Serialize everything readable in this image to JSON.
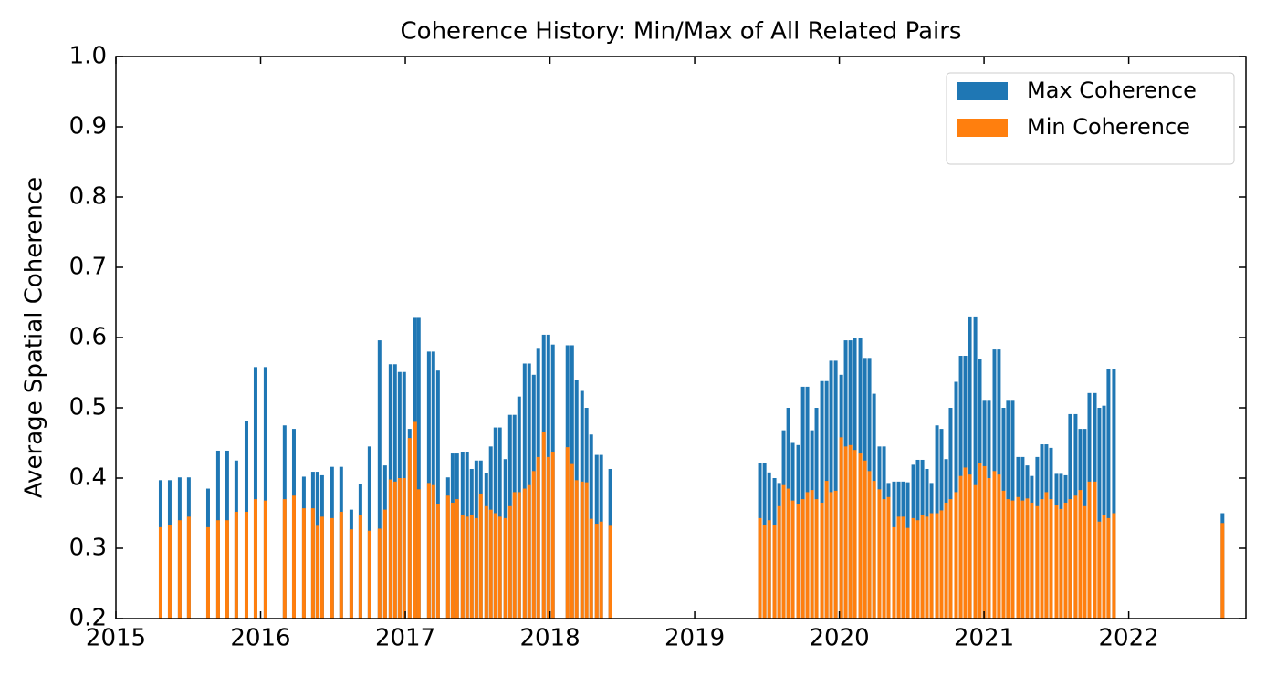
{
  "chart_data": {
    "type": "bar",
    "title": "Coherence History: Min/Max of All Related Pairs",
    "y_label": "Average Spatial Coherence",
    "xlim": [
      2015,
      2022.81
    ],
    "xticks": [
      2015,
      2016,
      2017,
      2018,
      2019,
      2020,
      2021,
      2022
    ],
    "ylim": [
      0.2,
      1.0
    ],
    "yticks": [
      0.2,
      0.3,
      0.4,
      0.5,
      0.6,
      0.7,
      0.8,
      0.9,
      {
        "value": 1.0,
        "label": "1.0"
      }
    ],
    "legend": "upper right",
    "x": [
      2015.309,
      2015.372,
      2015.441,
      2015.504,
      2015.637,
      2015.706,
      2015.769,
      2015.832,
      2015.902,
      2015.965,
      2016.034,
      2016.166,
      2016.23,
      2016.299,
      2016.362,
      2016.393,
      2016.425,
      2016.494,
      2016.557,
      2016.627,
      2016.69,
      2016.753,
      2016.822,
      2016.86,
      2016.898,
      2016.929,
      2016.961,
      2016.992,
      2017.03,
      2017.068,
      2017.093,
      2017.163,
      2017.194,
      2017.226,
      2017.295,
      2017.327,
      2017.358,
      2017.396,
      2017.427,
      2017.459,
      2017.491,
      2017.522,
      2017.56,
      2017.591,
      2017.623,
      2017.654,
      2017.692,
      2017.724,
      2017.755,
      2017.787,
      2017.825,
      2017.856,
      2017.888,
      2017.919,
      2017.957,
      2017.989,
      2018.02,
      2018.121,
      2018.153,
      2018.184,
      2018.222,
      2018.253,
      2018.285,
      2018.323,
      2018.354,
      2018.417,
      2019.451,
      2019.483,
      2019.515,
      2019.552,
      2019.584,
      2019.615,
      2019.647,
      2019.678,
      2019.716,
      2019.748,
      2019.779,
      2019.811,
      2019.842,
      2019.88,
      2019.912,
      2019.943,
      2019.975,
      2020.013,
      2020.044,
      2020.076,
      2020.107,
      2020.145,
      2020.177,
      2020.208,
      2020.24,
      2020.277,
      2020.309,
      2020.34,
      2020.378,
      2020.41,
      2020.441,
      2020.473,
      2020.511,
      2020.542,
      2020.574,
      2020.605,
      2020.637,
      2020.675,
      2020.706,
      2020.738,
      2020.769,
      2020.807,
      2020.839,
      2020.87,
      2020.902,
      2020.94,
      2020.971,
      2021.003,
      2021.034,
      2021.072,
      2021.103,
      2021.135,
      2021.166,
      2021.198,
      2021.236,
      2021.267,
      2021.299,
      2021.33,
      2021.368,
      2021.4,
      2021.431,
      2021.463,
      2021.501,
      2021.532,
      2021.564,
      2021.595,
      2021.633,
      2021.665,
      2021.696,
      2021.728,
      2021.766,
      2021.797,
      2021.829,
      2021.86,
      2021.898,
      2022.648
    ],
    "series": [
      {
        "name": "Max Coherence",
        "color": "#1f77b4",
        "values": [
          0.397,
          0.397,
          0.401,
          0.401,
          0.385,
          0.439,
          0.439,
          0.425,
          0.481,
          0.558,
          0.558,
          0.475,
          0.47,
          0.402,
          0.409,
          0.409,
          0.404,
          0.416,
          0.416,
          0.355,
          0.391,
          0.445,
          0.596,
          0.418,
          0.562,
          0.562,
          0.551,
          0.551,
          0.47,
          0.628,
          0.628,
          0.58,
          0.58,
          0.553,
          0.401,
          0.435,
          0.435,
          0.437,
          0.437,
          0.413,
          0.425,
          0.425,
          0.407,
          0.445,
          0.472,
          0.472,
          0.427,
          0.49,
          0.49,
          0.516,
          0.563,
          0.563,
          0.547,
          0.584,
          0.604,
          0.604,
          0.59,
          0.589,
          0.589,
          0.54,
          0.524,
          0.5,
          0.462,
          0.433,
          0.433,
          0.413,
          0.422,
          0.422,
          0.408,
          0.4,
          0.393,
          0.468,
          0.5,
          0.45,
          0.447,
          0.53,
          0.53,
          0.468,
          0.5,
          0.538,
          0.538,
          0.567,
          0.567,
          0.547,
          0.596,
          0.596,
          0.6,
          0.6,
          0.571,
          0.571,
          0.52,
          0.445,
          0.445,
          0.393,
          0.395,
          0.395,
          0.395,
          0.394,
          0.419,
          0.426,
          0.426,
          0.413,
          0.393,
          0.475,
          0.47,
          0.427,
          0.5,
          0.537,
          0.574,
          0.574,
          0.63,
          0.63,
          0.57,
          0.51,
          0.51,
          0.583,
          0.583,
          0.5,
          0.51,
          0.51,
          0.43,
          0.43,
          0.418,
          0.403,
          0.43,
          0.448,
          0.448,
          0.443,
          0.406,
          0.406,
          0.404,
          0.491,
          0.491,
          0.47,
          0.47,
          0.521,
          0.521,
          0.5,
          0.503,
          0.555,
          0.555,
          0.35
        ]
      },
      {
        "name": "Min Coherence",
        "color": "#ff7f0e",
        "values": [
          0.33,
          0.333,
          0.34,
          0.345,
          0.33,
          0.34,
          0.34,
          0.352,
          0.352,
          0.37,
          0.368,
          0.37,
          0.375,
          0.357,
          0.357,
          0.332,
          0.345,
          0.343,
          0.352,
          0.327,
          0.348,
          0.325,
          0.328,
          0.355,
          0.398,
          0.395,
          0.4,
          0.4,
          0.457,
          0.48,
          0.384,
          0.393,
          0.39,
          0.363,
          0.375,
          0.365,
          0.37,
          0.348,
          0.345,
          0.347,
          0.343,
          0.378,
          0.36,
          0.355,
          0.35,
          0.345,
          0.343,
          0.36,
          0.38,
          0.38,
          0.385,
          0.39,
          0.41,
          0.43,
          0.465,
          0.43,
          0.437,
          0.444,
          0.42,
          0.397,
          0.395,
          0.394,
          0.342,
          0.335,
          0.338,
          0.332,
          0.343,
          0.333,
          0.34,
          0.333,
          0.36,
          0.39,
          0.385,
          0.368,
          0.363,
          0.37,
          0.38,
          0.383,
          0.37,
          0.365,
          0.396,
          0.38,
          0.382,
          0.458,
          0.445,
          0.447,
          0.44,
          0.435,
          0.425,
          0.41,
          0.396,
          0.384,
          0.37,
          0.373,
          0.33,
          0.345,
          0.345,
          0.329,
          0.343,
          0.34,
          0.347,
          0.345,
          0.35,
          0.35,
          0.354,
          0.365,
          0.37,
          0.38,
          0.403,
          0.415,
          0.405,
          0.39,
          0.422,
          0.417,
          0.4,
          0.41,
          0.405,
          0.382,
          0.37,
          0.368,
          0.373,
          0.368,
          0.371,
          0.365,
          0.36,
          0.37,
          0.38,
          0.37,
          0.361,
          0.356,
          0.365,
          0.37,
          0.375,
          0.383,
          0.36,
          0.395,
          0.395,
          0.338,
          0.348,
          0.343,
          0.35,
          0.336
        ]
      }
    ]
  }
}
